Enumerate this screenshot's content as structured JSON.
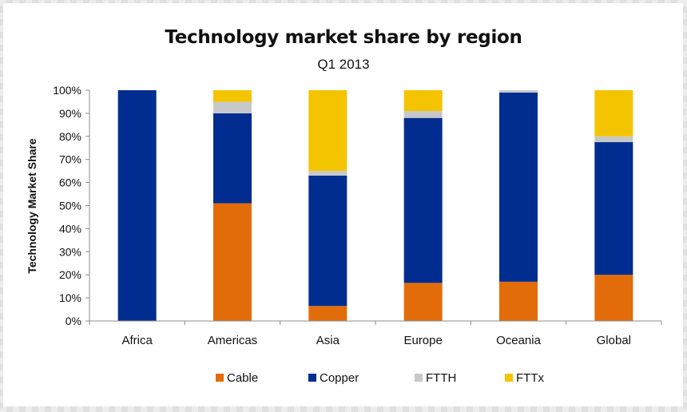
{
  "chart_data": {
    "type": "bar",
    "stacked": true,
    "title": "Technology market share by region",
    "subtitle": "Q1 2013",
    "xlabel": "",
    "ylabel": "Technology Market Share",
    "ylim": [
      0,
      100
    ],
    "y_ticks": [
      "0%",
      "10%",
      "20%",
      "30%",
      "40%",
      "50%",
      "60%",
      "70%",
      "80%",
      "90%",
      "100%"
    ],
    "grid": false,
    "legend_position": "bottom",
    "categories": [
      "Africa",
      "Americas",
      "Asia",
      "Europe",
      "Oceania",
      "Global"
    ],
    "series": [
      {
        "name": "Cable",
        "color": "#e36c0a",
        "values": [
          0,
          51,
          6.5,
          16.5,
          17,
          20
        ]
      },
      {
        "name": "Copper",
        "color": "#002d8f",
        "values": [
          100,
          39,
          56.5,
          71.5,
          82,
          57.5
        ]
      },
      {
        "name": "FTTH",
        "color": "#c6c8ca",
        "values": [
          0,
          5,
          2,
          3,
          1,
          2.5
        ]
      },
      {
        "name": "FTTx",
        "color": "#f5c400",
        "values": [
          0,
          5,
          35,
          9,
          0,
          20
        ]
      }
    ]
  }
}
